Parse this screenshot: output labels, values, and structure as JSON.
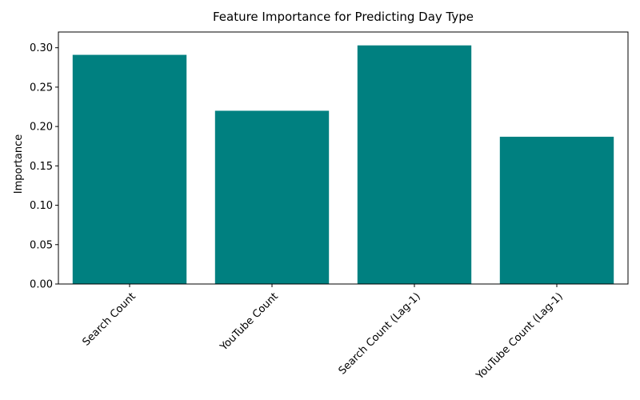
{
  "chart_data": {
    "type": "bar",
    "title": "Feature Importance for Predicting Day Type",
    "xlabel": "",
    "ylabel": "Importance",
    "categories": [
      "Search Count",
      "YouTube Count",
      "Search Count (Lag-1)",
      "YouTube Count (Lag-1)"
    ],
    "values": [
      0.291,
      0.22,
      0.303,
      0.187
    ],
    "ylim": [
      0,
      0.32
    ],
    "yticks": [
      "0.00",
      "0.05",
      "0.10",
      "0.15",
      "0.20",
      "0.25",
      "0.30"
    ],
    "bar_color": "#008080",
    "grid": false,
    "legend": "none",
    "xtick_rotation_deg": 45
  }
}
